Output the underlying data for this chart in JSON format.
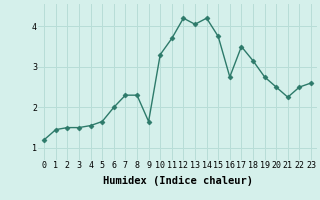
{
  "xlabel": "Humidex (Indice chaleur)",
  "x_values": [
    0,
    1,
    2,
    3,
    4,
    5,
    6,
    7,
    8,
    9,
    10,
    11,
    12,
    13,
    14,
    15,
    16,
    17,
    18,
    19,
    20,
    21,
    22,
    23
  ],
  "y_values": [
    1.2,
    1.45,
    1.5,
    1.5,
    1.55,
    1.65,
    2.0,
    2.3,
    2.3,
    1.65,
    3.3,
    3.7,
    4.2,
    4.05,
    4.2,
    3.75,
    2.75,
    3.5,
    3.15,
    2.75,
    2.5,
    2.25,
    2.5,
    2.6
  ],
  "line_color": "#2d7a6a",
  "marker": "D",
  "marker_size": 2.5,
  "line_width": 1.0,
  "bg_color": "#d5f0eb",
  "grid_color": "#b8ddd7",
  "ylim": [
    0.7,
    4.55
  ],
  "xlim": [
    -0.5,
    23.5
  ],
  "yticks": [
    1,
    2,
    3,
    4
  ],
  "xticks": [
    0,
    1,
    2,
    3,
    4,
    5,
    6,
    7,
    8,
    9,
    10,
    11,
    12,
    13,
    14,
    15,
    16,
    17,
    18,
    19,
    20,
    21,
    22,
    23
  ],
  "xlabel_fontsize": 7.5,
  "tick_fontsize": 6.0
}
